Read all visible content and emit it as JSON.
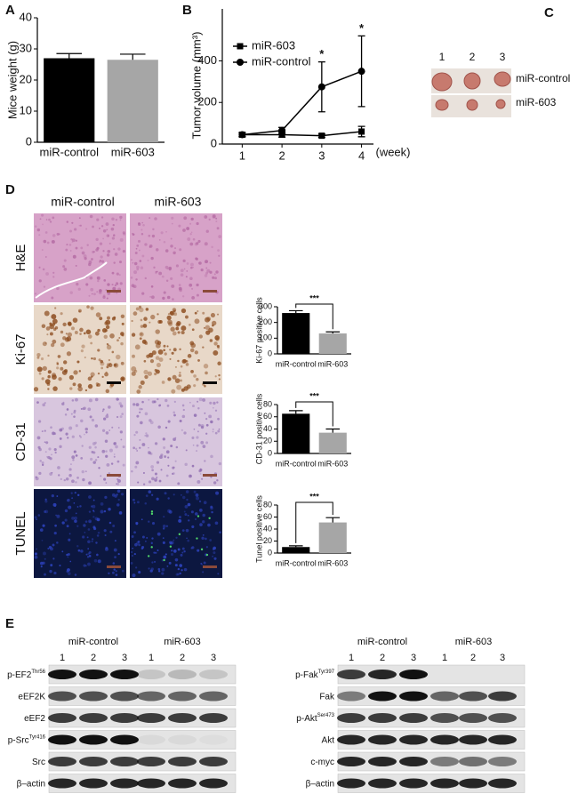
{
  "panels": [
    "A",
    "B",
    "C",
    "D",
    "E"
  ],
  "chart_data": [
    {
      "type": "bar",
      "ylabel": "Mice weight (g)",
      "categories": [
        "miR-control",
        "miR-603"
      ],
      "values": [
        27,
        26.5
      ],
      "errors": [
        1.5,
        1.8
      ],
      "colors": [
        "#000000",
        "#a6a6a6"
      ],
      "ylim": [
        0,
        40
      ],
      "yticks": [
        0,
        10,
        20,
        30,
        40
      ]
    },
    {
      "type": "line",
      "ylabel": "Tumor volume (mm³)",
      "xlabel": "(week)",
      "x": [
        1,
        2,
        3,
        4
      ],
      "xlim": [
        0.5,
        4.3
      ],
      "xticks": [
        1,
        2,
        3,
        4
      ],
      "ylim": [
        0,
        650
      ],
      "yticks": [
        0,
        200,
        400
      ],
      "series": [
        {
          "name": "miR-603",
          "marker": "square",
          "color": "#000000",
          "values": [
            45,
            45,
            40,
            60
          ],
          "errors": [
            10,
            12,
            8,
            25
          ]
        },
        {
          "name": "miR-control",
          "marker": "circle",
          "color": "#000000",
          "values": [
            45,
            65,
            275,
            350
          ],
          "errors": [
            10,
            15,
            120,
            170
          ]
        }
      ],
      "significance": [
        null,
        null,
        "*",
        "*"
      ]
    },
    {
      "type": "bar",
      "ylabel": "Ki-67 positive cells",
      "categories": [
        "miR-control",
        "miR-603"
      ],
      "values": [
        260,
        130
      ],
      "errors": [
        15,
        10
      ],
      "colors": [
        "#000000",
        "#a6a6a6"
      ],
      "ylim": [
        0,
        300
      ],
      "yticks": [
        0,
        100,
        200,
        300
      ],
      "annotation": "***"
    },
    {
      "type": "bar",
      "ylabel": "CD-31 positive cells",
      "categories": [
        "miR-control",
        "miR-603"
      ],
      "values": [
        65,
        34
      ],
      "errors": [
        5,
        6
      ],
      "colors": [
        "#000000",
        "#a6a6a6"
      ],
      "ylim": [
        0,
        80
      ],
      "yticks": [
        0,
        20,
        40,
        60,
        80
      ],
      "annotation": "***"
    },
    {
      "type": "bar",
      "ylabel": "Tunel positive cells",
      "categories": [
        "miR-control",
        "miR-603"
      ],
      "values": [
        10,
        51
      ],
      "errors": [
        2,
        8
      ],
      "colors": [
        "#000000",
        "#a6a6a6"
      ],
      "ylim": [
        0,
        80
      ],
      "yticks": [
        0,
        20,
        40,
        60,
        80
      ],
      "annotation": "***"
    }
  ],
  "tumors": {
    "lanes": [
      "1",
      "2",
      "3"
    ],
    "rows": [
      "miR-control",
      "miR-603"
    ]
  },
  "histology": {
    "columns": [
      "miR-control",
      "miR-603"
    ],
    "rows": [
      "H&E",
      "Ki-67",
      "CD-31",
      "TUNEL"
    ]
  },
  "blots": [
    {
      "groups": [
        "miR-control",
        "miR-603"
      ],
      "lanes": [
        "1",
        "2",
        "3",
        "1",
        "2",
        "3"
      ],
      "rows": [
        {
          "label": "p-EF2",
          "sup": "Thr56"
        },
        {
          "label": "eEF2K"
        },
        {
          "label": "eEF2"
        },
        {
          "label": "p-Src",
          "sup": "Tyr416"
        },
        {
          "label": "Src"
        },
        {
          "label": "β–actin"
        }
      ]
    },
    {
      "groups": [
        "miR-control",
        "miR-603"
      ],
      "lanes": [
        "1",
        "2",
        "3",
        "1",
        "2",
        "3"
      ],
      "rows": [
        {
          "label": "p-Fak",
          "sup": "Tyr397"
        },
        {
          "label": "Fak"
        },
        {
          "label": "p-Akt",
          "sup": "Ser473"
        },
        {
          "label": "Akt"
        },
        {
          "label": "c-myc"
        },
        {
          "label": "β–actin"
        }
      ]
    }
  ]
}
